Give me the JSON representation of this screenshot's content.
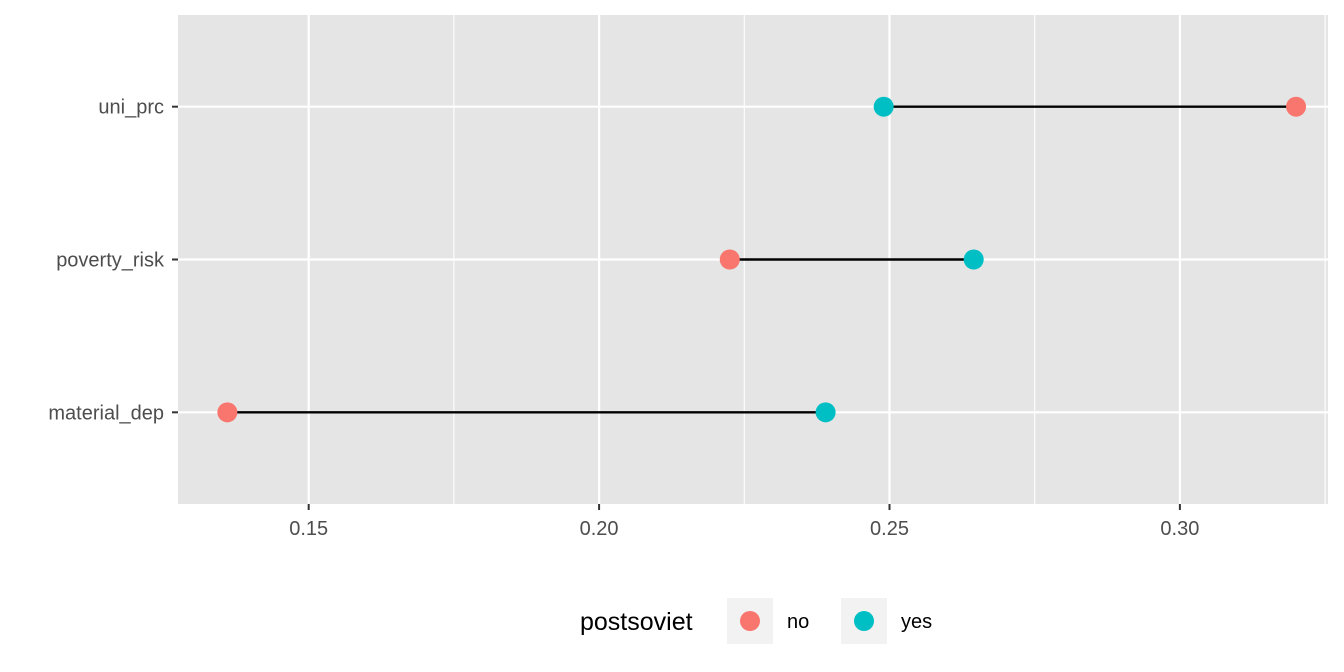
{
  "chart_data": {
    "type": "scatter",
    "subtype": "dumbbell",
    "title": "",
    "xlabel": "",
    "ylabel": "",
    "xlim": [
      0.1275,
      0.3255
    ],
    "x_ticks": [
      0.15,
      0.2,
      0.25,
      0.3
    ],
    "x_tick_labels": [
      "0.15",
      "0.20",
      "0.25",
      "0.30"
    ],
    "categories": [
      "uni_prc",
      "poverty_risk",
      "material_dep"
    ],
    "series": [
      {
        "name": "no",
        "color": "#F8766D",
        "values": [
          0.32,
          0.2225,
          0.136
        ]
      },
      {
        "name": "yes",
        "color": "#00BFC4",
        "values": [
          0.249,
          0.2645,
          0.239
        ]
      }
    ],
    "connector_color": "#000000",
    "grid": true,
    "panel_background": "#E5E5E5",
    "legend": {
      "title": "postsoviet",
      "position": "bottom",
      "entries": [
        {
          "label": "no",
          "color": "#F8766D"
        },
        {
          "label": "yes",
          "color": "#00BFC4"
        }
      ]
    }
  }
}
